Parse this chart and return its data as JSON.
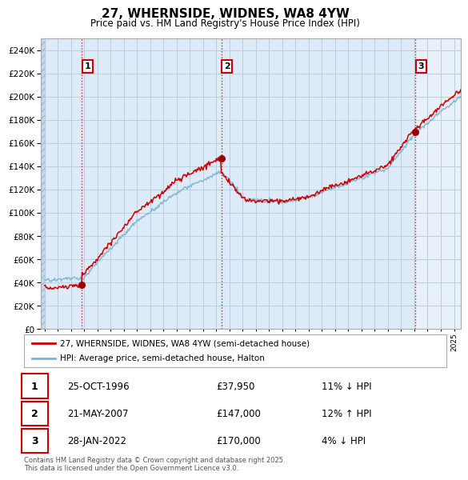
{
  "title": "27, WHERNSIDE, WIDNES, WA8 4YW",
  "subtitle": "Price paid vs. HM Land Registry's House Price Index (HPI)",
  "legend_line1": "27, WHERNSIDE, WIDNES, WA8 4YW (semi-detached house)",
  "legend_line2": "HPI: Average price, semi-detached house, Halton",
  "sale1_date": "25-OCT-1996",
  "sale1_price": 37950,
  "sale1_hpi": "11% ↓ HPI",
  "sale2_date": "21-MAY-2007",
  "sale2_price": 147000,
  "sale2_hpi": "12% ↑ HPI",
  "sale3_date": "28-JAN-2022",
  "sale3_price": 170000,
  "sale3_hpi": "4% ↓ HPI",
  "footer": "Contains HM Land Registry data © Crown copyright and database right 2025.\nThis data is licensed under the Open Government Licence v3.0.",
  "bg_color": "#ddeaf7",
  "bg_color_after": "#e8f1fa",
  "hatch_color": "#c5d8ec",
  "grid_color": "#b8cfe0",
  "line_color_sale": "#cc0000",
  "line_color_hpi": "#7ab3d4",
  "ylim": [
    0,
    250000
  ],
  "yticks": [
    0,
    20000,
    40000,
    60000,
    80000,
    100000,
    120000,
    140000,
    160000,
    180000,
    200000,
    220000,
    240000
  ],
  "sale_marker_color": "#990000",
  "vline_color": "#cc0000",
  "annotation_box_color": "#cc0000",
  "xmin": 1994.0,
  "xmax": 2025.5,
  "sale_times": [
    1996.81,
    2007.38,
    2022.07
  ],
  "sale_prices": [
    37950,
    147000,
    170000
  ]
}
